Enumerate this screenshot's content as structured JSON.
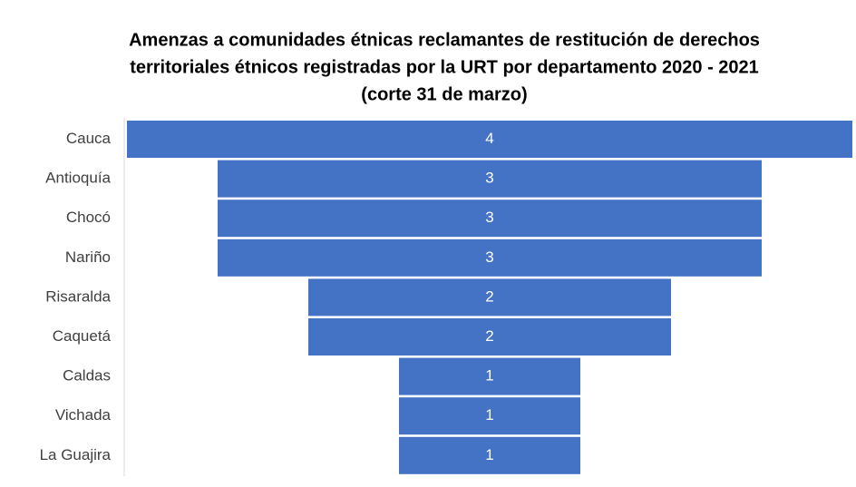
{
  "chart_data": {
    "type": "funnel",
    "title": [
      "Amenzas a comunidades étnicas reclamantes de restitución de derechos",
      "territoriales étnicos registradas por la URT por departamento 2020 - 2021",
      "(corte 31 de marzo)"
    ],
    "categories": [
      "Cauca",
      "Antioquía",
      "Chocó",
      "Nariño",
      "Risaralda",
      "Caquetá",
      "Caldas",
      "Vichada",
      "La Guajira"
    ],
    "values": [
      4,
      3,
      3,
      3,
      2,
      2,
      1,
      1,
      1
    ],
    "color": "#4472c4"
  }
}
